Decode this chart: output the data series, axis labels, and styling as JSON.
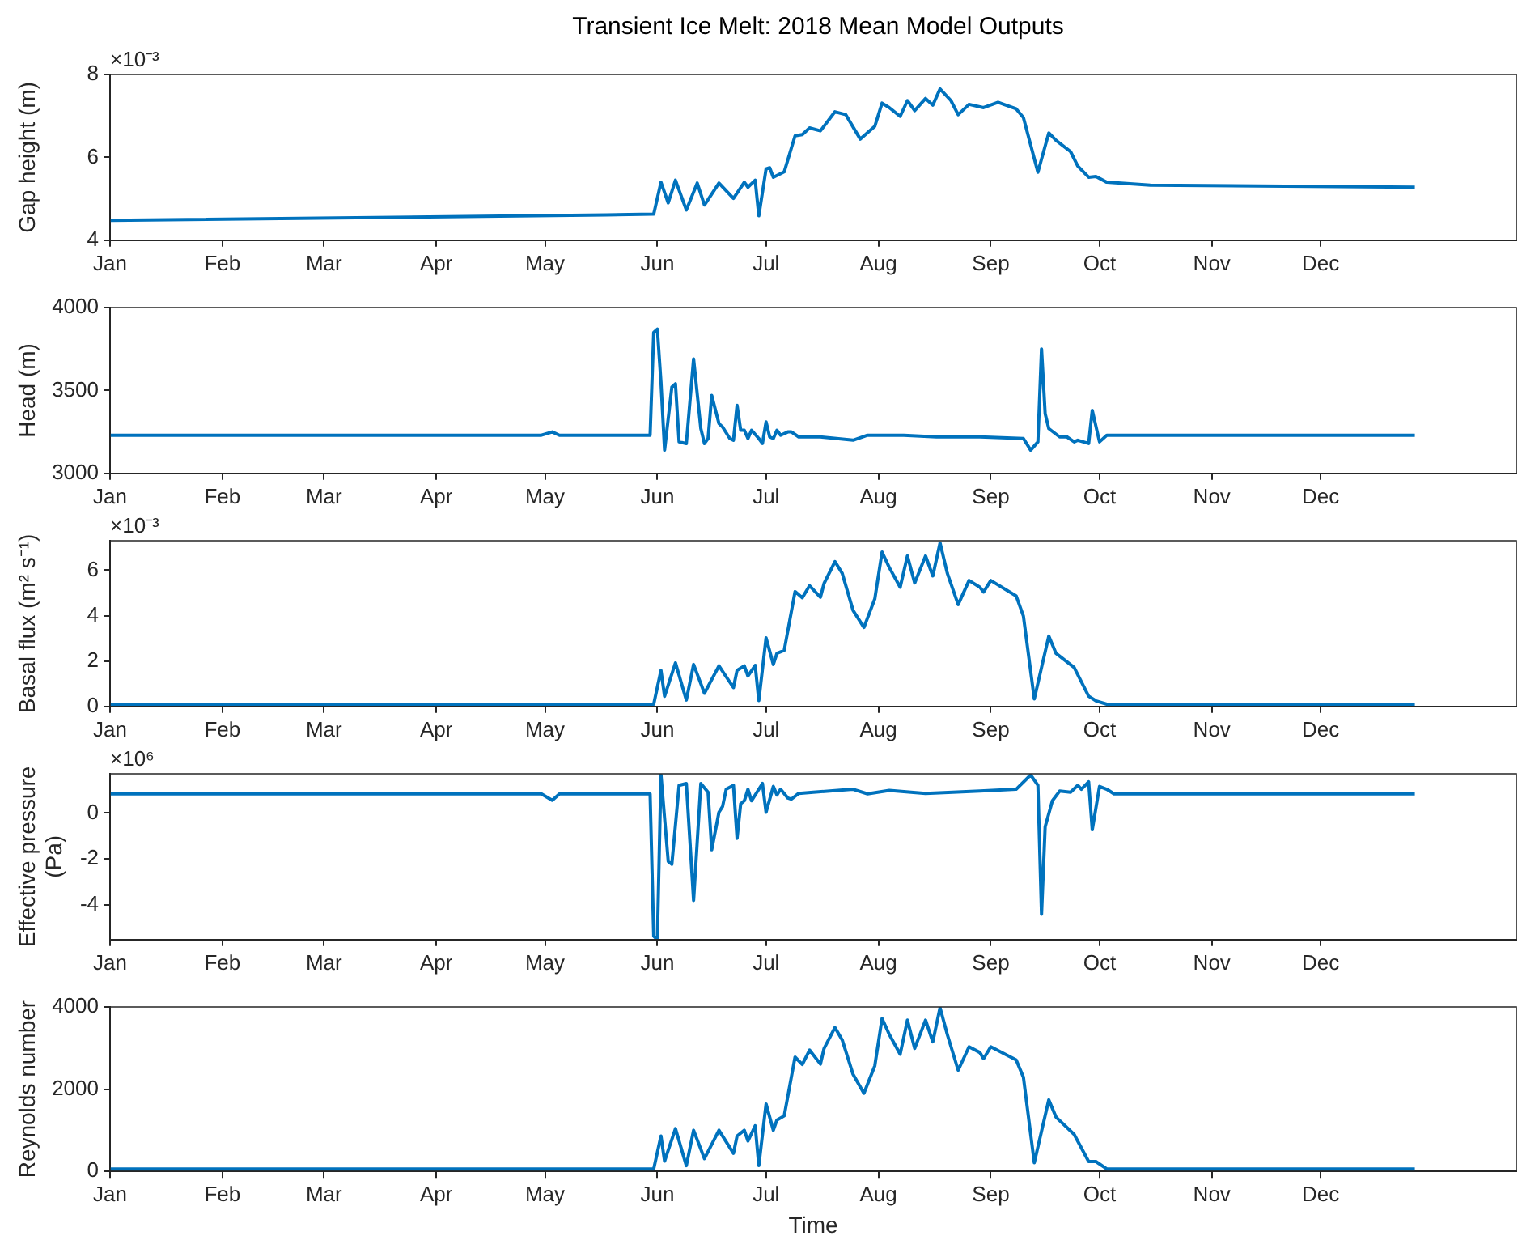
{
  "chart_data": [
    {
      "type": "line",
      "title": "Transient Ice Melt: 2018 Mean Model Outputs",
      "ylabel": "Gap height (m)",
      "annotations": [
        "×10⁻³"
      ],
      "color": "#0072bd",
      "xlim": [
        "2018-01-01",
        "2019-01-24"
      ],
      "xticks": [
        {
          "value": "2018-01-01",
          "label": "Jan"
        },
        {
          "value": "2018-02-01",
          "label": "Feb"
        },
        {
          "value": "2018-03-01",
          "label": "Mar"
        },
        {
          "value": "2018-04-01",
          "label": "Apr"
        },
        {
          "value": "2018-05-01",
          "label": "May"
        },
        {
          "value": "2018-06-01",
          "label": "Jun"
        },
        {
          "value": "2018-07-01",
          "label": "Jul"
        },
        {
          "value": "2018-08-01",
          "label": "Aug"
        },
        {
          "value": "2018-09-01",
          "label": "Sep"
        },
        {
          "value": "2018-10-01",
          "label": "Oct"
        },
        {
          "value": "2018-11-01",
          "label": "Nov"
        },
        {
          "value": "2018-12-01",
          "label": "Dec"
        }
      ],
      "ylim": [
        4,
        8
      ],
      "yticks": [
        4,
        6,
        8
      ],
      "x": [
        "2018-01-01",
        "2018-05-18",
        "2018-05-31",
        "2018-06-02",
        "2018-06-04",
        "2018-06-06",
        "2018-06-09",
        "2018-06-12",
        "2018-06-14",
        "2018-06-18",
        "2018-06-22",
        "2018-06-25",
        "2018-06-26",
        "2018-06-28",
        "2018-06-29",
        "2018-07-01",
        "2018-07-02",
        "2018-07-03",
        "2018-07-06",
        "2018-07-09",
        "2018-07-11",
        "2018-07-13",
        "2018-07-16",
        "2018-07-20",
        "2018-07-23",
        "2018-07-27",
        "2018-07-31",
        "2018-08-02",
        "2018-08-04",
        "2018-08-07",
        "2018-08-09",
        "2018-08-11",
        "2018-08-14",
        "2018-08-16",
        "2018-08-18",
        "2018-08-21",
        "2018-08-23",
        "2018-08-26",
        "2018-08-30",
        "2018-09-03",
        "2018-09-08",
        "2018-09-10",
        "2018-09-14",
        "2018-09-17",
        "2018-09-19",
        "2018-09-23",
        "2018-09-25",
        "2018-09-28",
        "2018-09-30",
        "2018-10-03",
        "2018-10-15",
        "2018-12-27"
      ],
      "values": [
        4.48,
        4.61,
        4.63,
        5.4,
        4.9,
        5.45,
        4.73,
        5.38,
        4.85,
        5.38,
        5.01,
        5.4,
        5.28,
        5.45,
        4.59,
        5.72,
        5.75,
        5.52,
        5.65,
        6.52,
        6.55,
        6.71,
        6.64,
        7.1,
        7.03,
        6.44,
        6.75,
        7.31,
        7.2,
        6.99,
        7.37,
        7.13,
        7.42,
        7.26,
        7.65,
        7.37,
        7.03,
        7.28,
        7.2,
        7.33,
        7.17,
        6.96,
        5.64,
        6.59,
        6.41,
        6.14,
        5.79,
        5.52,
        5.54,
        5.4,
        5.33,
        5.28
      ]
    },
    {
      "type": "line",
      "ylabel": "Head (m)",
      "color": "#0072bd",
      "xlim": [
        "2018-01-01",
        "2019-01-24"
      ],
      "xticks": [
        {
          "value": "2018-01-01",
          "label": "Jan"
        },
        {
          "value": "2018-02-01",
          "label": "Feb"
        },
        {
          "value": "2018-03-01",
          "label": "Mar"
        },
        {
          "value": "2018-04-01",
          "label": "Apr"
        },
        {
          "value": "2018-05-01",
          "label": "May"
        },
        {
          "value": "2018-06-01",
          "label": "Jun"
        },
        {
          "value": "2018-07-01",
          "label": "Jul"
        },
        {
          "value": "2018-08-01",
          "label": "Aug"
        },
        {
          "value": "2018-09-01",
          "label": "Sep"
        },
        {
          "value": "2018-10-01",
          "label": "Oct"
        },
        {
          "value": "2018-11-01",
          "label": "Nov"
        },
        {
          "value": "2018-12-01",
          "label": "Dec"
        }
      ],
      "ylim": [
        3000,
        4000
      ],
      "yticks": [
        3000,
        3500,
        4000
      ],
      "x": [
        "2018-01-01",
        "2018-04-30",
        "2018-05-03",
        "2018-05-05",
        "2018-05-18",
        "2018-05-30",
        "2018-05-31",
        "2018-06-01",
        "2018-06-02",
        "2018-06-03",
        "2018-06-05",
        "2018-06-06",
        "2018-06-07",
        "2018-06-09",
        "2018-06-11",
        "2018-06-13",
        "2018-06-14",
        "2018-06-15",
        "2018-06-16",
        "2018-06-18",
        "2018-06-19",
        "2018-06-21",
        "2018-06-22",
        "2018-06-23",
        "2018-06-24",
        "2018-06-25",
        "2018-06-26",
        "2018-06-27",
        "2018-06-29",
        "2018-06-30",
        "2018-07-01",
        "2018-07-02",
        "2018-07-03",
        "2018-07-04",
        "2018-07-05",
        "2018-07-07",
        "2018-07-08",
        "2018-07-10",
        "2018-07-16",
        "2018-07-25",
        "2018-07-29",
        "2018-08-08",
        "2018-08-17",
        "2018-08-29",
        "2018-09-10",
        "2018-09-12",
        "2018-09-14",
        "2018-09-15",
        "2018-09-16",
        "2018-09-17",
        "2018-09-20",
        "2018-09-22",
        "2018-09-24",
        "2018-09-25",
        "2018-09-28",
        "2018-09-29",
        "2018-10-01",
        "2018-10-03",
        "2018-10-15",
        "2018-12-27"
      ],
      "values": [
        3230,
        3230,
        3250,
        3230,
        3230,
        3230,
        3850,
        3870,
        3550,
        3140,
        3520,
        3540,
        3190,
        3180,
        3690,
        3270,
        3180,
        3210,
        3470,
        3300,
        3280,
        3210,
        3200,
        3410,
        3260,
        3260,
        3210,
        3260,
        3210,
        3180,
        3310,
        3220,
        3210,
        3260,
        3230,
        3250,
        3250,
        3220,
        3220,
        3200,
        3230,
        3230,
        3220,
        3220,
        3210,
        3140,
        3190,
        3750,
        3360,
        3270,
        3220,
        3220,
        3190,
        3200,
        3180,
        3380,
        3190,
        3230,
        3230,
        3230
      ]
    },
    {
      "type": "line",
      "ylabel": "Basal flux (m² s⁻¹)",
      "annotations": [
        "×10⁻³"
      ],
      "color": "#0072bd",
      "xlim": [
        "2018-01-01",
        "2019-01-24"
      ],
      "xticks": [
        {
          "value": "2018-01-01",
          "label": "Jan"
        },
        {
          "value": "2018-02-01",
          "label": "Feb"
        },
        {
          "value": "2018-03-01",
          "label": "Mar"
        },
        {
          "value": "2018-04-01",
          "label": "Apr"
        },
        {
          "value": "2018-05-01",
          "label": "May"
        },
        {
          "value": "2018-06-01",
          "label": "Jun"
        },
        {
          "value": "2018-07-01",
          "label": "Jul"
        },
        {
          "value": "2018-08-01",
          "label": "Aug"
        },
        {
          "value": "2018-09-01",
          "label": "Sep"
        },
        {
          "value": "2018-10-01",
          "label": "Oct"
        },
        {
          "value": "2018-11-01",
          "label": "Nov"
        },
        {
          "value": "2018-12-01",
          "label": "Dec"
        }
      ],
      "ylim": [
        0,
        7.3
      ],
      "yticks": [
        0,
        2,
        4,
        6
      ],
      "x": [
        "2018-01-01",
        "2018-05-18",
        "2018-05-31",
        "2018-06-02",
        "2018-06-03",
        "2018-06-06",
        "2018-06-09",
        "2018-06-11",
        "2018-06-14",
        "2018-06-18",
        "2018-06-22",
        "2018-06-23",
        "2018-06-25",
        "2018-06-26",
        "2018-06-28",
        "2018-06-29",
        "2018-07-01",
        "2018-07-03",
        "2018-07-04",
        "2018-07-06",
        "2018-07-09",
        "2018-07-11",
        "2018-07-13",
        "2018-07-16",
        "2018-07-17",
        "2018-07-20",
        "2018-07-22",
        "2018-07-25",
        "2018-07-28",
        "2018-07-31",
        "2018-08-02",
        "2018-08-04",
        "2018-08-07",
        "2018-08-09",
        "2018-08-11",
        "2018-08-14",
        "2018-08-16",
        "2018-08-18",
        "2018-08-20",
        "2018-08-23",
        "2018-08-26",
        "2018-08-29",
        "2018-08-30",
        "2018-09-01",
        "2018-09-08",
        "2018-09-10",
        "2018-09-13",
        "2018-09-17",
        "2018-09-19",
        "2018-09-24",
        "2018-09-28",
        "2018-09-30",
        "2018-10-03",
        "2018-12-27"
      ],
      "values": [
        0.1,
        0.1,
        0.1,
        1.59,
        0.45,
        1.92,
        0.28,
        1.85,
        0.58,
        1.79,
        0.83,
        1.59,
        1.79,
        1.34,
        1.81,
        0.26,
        3.02,
        1.85,
        2.34,
        2.47,
        5.06,
        4.79,
        5.32,
        4.81,
        5.42,
        6.38,
        5.87,
        4.23,
        3.48,
        4.74,
        6.8,
        6.12,
        5.25,
        6.63,
        5.44,
        6.63,
        5.75,
        7.2,
        5.87,
        4.49,
        5.55,
        5.25,
        5.04,
        5.55,
        4.87,
        3.98,
        0.33,
        3.1,
        2.34,
        1.72,
        0.45,
        0.25,
        0.1,
        0.1
      ]
    },
    {
      "type": "line",
      "ylabel": "Effective pressure\n(Pa)",
      "annotations": [
        "×10⁶"
      ],
      "color": "#0072bd",
      "xlim": [
        "2018-01-01",
        "2019-01-24"
      ],
      "xticks": [
        {
          "value": "2018-01-01",
          "label": "Jan"
        },
        {
          "value": "2018-02-01",
          "label": "Feb"
        },
        {
          "value": "2018-03-01",
          "label": "Mar"
        },
        {
          "value": "2018-04-01",
          "label": "Apr"
        },
        {
          "value": "2018-05-01",
          "label": "May"
        },
        {
          "value": "2018-06-01",
          "label": "Jun"
        },
        {
          "value": "2018-07-01",
          "label": "Jul"
        },
        {
          "value": "2018-08-01",
          "label": "Aug"
        },
        {
          "value": "2018-09-01",
          "label": "Sep"
        },
        {
          "value": "2018-10-01",
          "label": "Oct"
        },
        {
          "value": "2018-11-01",
          "label": "Nov"
        },
        {
          "value": "2018-12-01",
          "label": "Dec"
        }
      ],
      "ylim": [
        -5.5,
        1.7
      ],
      "yticks": [
        -4,
        -2,
        0
      ],
      "x": [
        "2018-01-01",
        "2018-04-30",
        "2018-05-03",
        "2018-05-05",
        "2018-05-18",
        "2018-05-30",
        "2018-05-31",
        "2018-06-01",
        "2018-06-02",
        "2018-06-04",
        "2018-06-05",
        "2018-06-07",
        "2018-06-09",
        "2018-06-11",
        "2018-06-13",
        "2018-06-15",
        "2018-06-16",
        "2018-06-18",
        "2018-06-19",
        "2018-06-20",
        "2018-06-22",
        "2018-06-23",
        "2018-06-24",
        "2018-06-25",
        "2018-06-26",
        "2018-06-27",
        "2018-06-30",
        "2018-07-01",
        "2018-07-03",
        "2018-07-04",
        "2018-07-05",
        "2018-07-07",
        "2018-07-08",
        "2018-07-10",
        "2018-07-14",
        "2018-07-25",
        "2018-07-29",
        "2018-08-04",
        "2018-08-14",
        "2018-08-29",
        "2018-09-08",
        "2018-09-12",
        "2018-09-14",
        "2018-09-15",
        "2018-09-16",
        "2018-09-18",
        "2018-09-20",
        "2018-09-23",
        "2018-09-25",
        "2018-09-26",
        "2018-09-28",
        "2018-09-29",
        "2018-10-01",
        "2018-10-03",
        "2018-10-05",
        "2018-12-27"
      ],
      "values": [
        0.83,
        0.83,
        0.55,
        0.83,
        0.83,
        0.83,
        -5.35,
        -5.5,
        1.65,
        -2.1,
        -2.23,
        1.2,
        1.28,
        -3.8,
        1.28,
        0.9,
        -1.6,
        0.03,
        0.28,
        1.03,
        1.2,
        -1.1,
        0.4,
        0.53,
        1.03,
        0.53,
        1.28,
        0.03,
        1.15,
        0.78,
        1.03,
        0.65,
        0.6,
        0.85,
        0.9,
        1.03,
        0.83,
        0.98,
        0.85,
        0.95,
        1.03,
        1.65,
        1.2,
        -4.4,
        -0.6,
        0.53,
        0.95,
        0.9,
        1.2,
        1.03,
        1.35,
        -0.73,
        1.15,
        1.03,
        0.83,
        0.83
      ]
    },
    {
      "type": "line",
      "ylabel": "Reynolds number",
      "xlabel": "Time",
      "color": "#0072bd",
      "xlim": [
        "2018-01-01",
        "2019-01-24"
      ],
      "xticks": [
        {
          "value": "2018-01-01",
          "label": "Jan"
        },
        {
          "value": "2018-02-01",
          "label": "Feb"
        },
        {
          "value": "2018-03-01",
          "label": "Mar"
        },
        {
          "value": "2018-04-01",
          "label": "Apr"
        },
        {
          "value": "2018-05-01",
          "label": "May"
        },
        {
          "value": "2018-06-01",
          "label": "Jun"
        },
        {
          "value": "2018-07-01",
          "label": "Jul"
        },
        {
          "value": "2018-08-01",
          "label": "Aug"
        },
        {
          "value": "2018-09-01",
          "label": "Sep"
        },
        {
          "value": "2018-10-01",
          "label": "Oct"
        },
        {
          "value": "2018-11-01",
          "label": "Nov"
        },
        {
          "value": "2018-12-01",
          "label": "Dec"
        }
      ],
      "ylim": [
        0,
        4000
      ],
      "yticks": [
        0,
        2000,
        4000
      ],
      "x": [
        "2018-01-01",
        "2018-05-18",
        "2018-05-31",
        "2018-06-02",
        "2018-06-03",
        "2018-06-06",
        "2018-06-09",
        "2018-06-11",
        "2018-06-14",
        "2018-06-18",
        "2018-06-22",
        "2018-06-23",
        "2018-06-25",
        "2018-06-26",
        "2018-06-28",
        "2018-06-29",
        "2018-07-01",
        "2018-07-03",
        "2018-07-04",
        "2018-07-06",
        "2018-07-09",
        "2018-07-11",
        "2018-07-13",
        "2018-07-16",
        "2018-07-17",
        "2018-07-20",
        "2018-07-22",
        "2018-07-25",
        "2018-07-28",
        "2018-07-31",
        "2018-08-02",
        "2018-08-04",
        "2018-08-07",
        "2018-08-09",
        "2018-08-11",
        "2018-08-14",
        "2018-08-16",
        "2018-08-18",
        "2018-08-20",
        "2018-08-23",
        "2018-08-26",
        "2018-08-29",
        "2018-08-30",
        "2018-09-01",
        "2018-09-08",
        "2018-09-10",
        "2018-09-13",
        "2018-09-17",
        "2018-09-19",
        "2018-09-24",
        "2018-09-28",
        "2018-09-30",
        "2018-10-03",
        "2018-12-27"
      ],
      "values": [
        60,
        60,
        60,
        860,
        250,
        1040,
        140,
        1000,
        310,
        1000,
        440,
        860,
        1000,
        740,
        1110,
        140,
        1640,
        1000,
        1250,
        1350,
        2780,
        2600,
        2950,
        2610,
        2990,
        3500,
        3200,
        2360,
        1900,
        2570,
        3720,
        3330,
        2850,
        3680,
        2990,
        3680,
        3150,
        3980,
        3330,
        2460,
        3030,
        2890,
        2740,
        3030,
        2710,
        2290,
        210,
        1740,
        1320,
        900,
        240,
        240,
        60,
        60
      ]
    }
  ]
}
